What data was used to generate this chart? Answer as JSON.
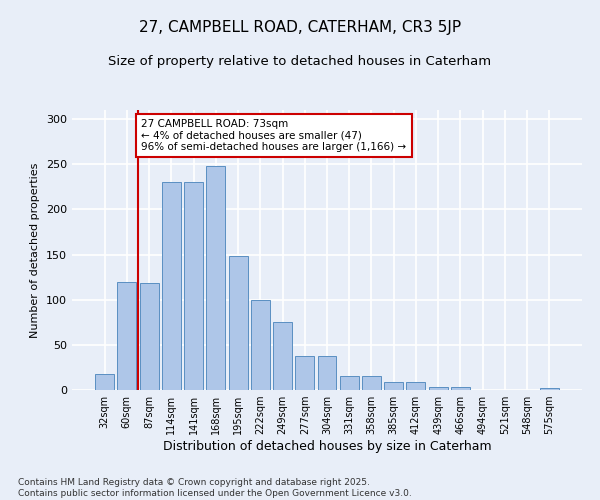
{
  "title": "27, CAMPBELL ROAD, CATERHAM, CR3 5JP",
  "subtitle": "Size of property relative to detached houses in Caterham",
  "xlabel": "Distribution of detached houses by size in Caterham",
  "ylabel": "Number of detached properties",
  "categories": [
    "32sqm",
    "60sqm",
    "87sqm",
    "114sqm",
    "141sqm",
    "168sqm",
    "195sqm",
    "222sqm",
    "249sqm",
    "277sqm",
    "304sqm",
    "331sqm",
    "358sqm",
    "385sqm",
    "412sqm",
    "439sqm",
    "466sqm",
    "494sqm",
    "521sqm",
    "548sqm",
    "575sqm"
  ],
  "values": [
    18,
    120,
    118,
    230,
    230,
    248,
    148,
    100,
    75,
    38,
    38,
    15,
    15,
    9,
    9,
    3,
    3,
    0,
    0,
    0,
    2
  ],
  "bar_color": "#aec6e8",
  "bar_edge_color": "#5a8fc2",
  "vline_x": 1.5,
  "vline_color": "#cc0000",
  "annotation_text": "27 CAMPBELL ROAD: 73sqm\n← 4% of detached houses are smaller (47)\n96% of semi-detached houses are larger (1,166) →",
  "annotation_box_color": "#ffffff",
  "annotation_box_edge": "#cc0000",
  "ylim": [
    0,
    310
  ],
  "yticks": [
    0,
    50,
    100,
    150,
    200,
    250,
    300
  ],
  "footer": "Contains HM Land Registry data © Crown copyright and database right 2025.\nContains public sector information licensed under the Open Government Licence v3.0.",
  "bg_color": "#e8eef8",
  "plot_bg_color": "#e8eef8",
  "grid_color": "#ffffff",
  "title_fontsize": 11,
  "subtitle_fontsize": 9.5,
  "footer_fontsize": 6.5,
  "ann_fontsize": 7.5
}
